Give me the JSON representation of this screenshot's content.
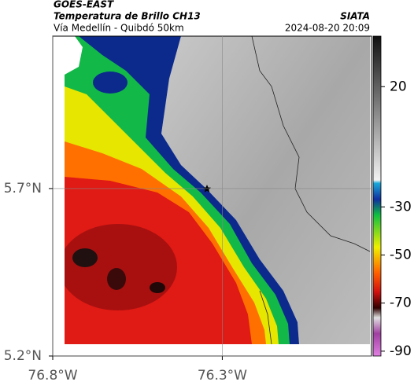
{
  "header": {
    "source": "GOES-EAST",
    "title": "Temperatura de Brillo CH13",
    "subtitle": "Vía Medellín - Quibdó 50km",
    "credit": "SIATA",
    "timestamp": "2024-08-20 20:09"
  },
  "map": {
    "xlim": [
      -76.8,
      -75.86
    ],
    "ylim": [
      5.2,
      6.155
    ],
    "xticks": [
      {
        "value": -76.8,
        "label": "76.8°W"
      },
      {
        "value": -76.3,
        "label": "76.3°W"
      }
    ],
    "yticks": [
      {
        "value": 5.7,
        "label": "5.7°N"
      },
      {
        "value": 5.2,
        "label": "5.2°N"
      }
    ]
  },
  "colorbar": {
    "lim": [
      -92,
      41
    ],
    "ticks": [
      20,
      -30,
      -50,
      -70,
      -90
    ]
  }
}
